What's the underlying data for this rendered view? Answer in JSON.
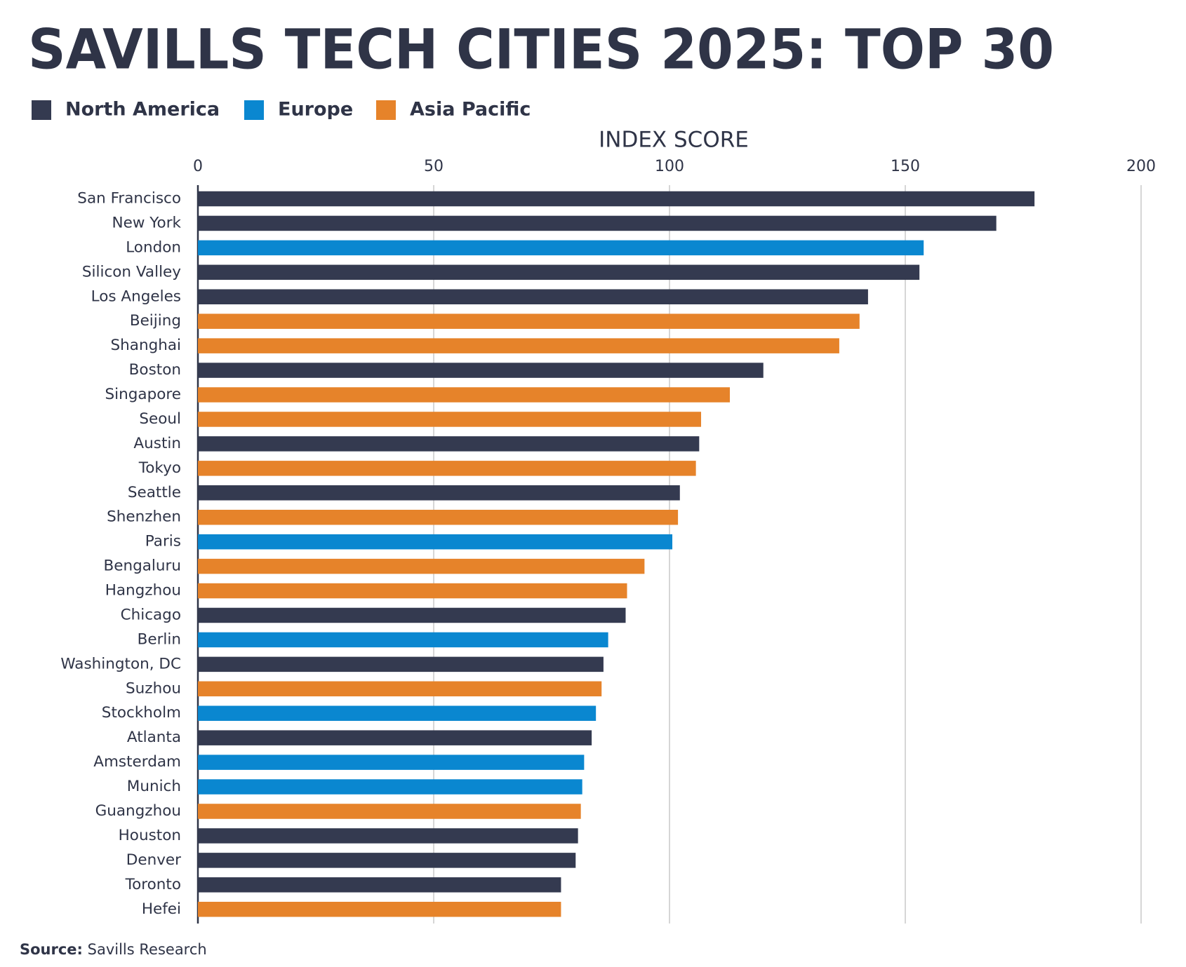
{
  "chart_data": {
    "type": "bar",
    "orientation": "horizontal",
    "title": "SAVILLS TECH CITIES 2025: TOP 30",
    "x_label": "INDEX SCORE",
    "categories": [
      "San Francisco",
      "New York",
      "London",
      "Silicon Valley",
      "Los Angeles",
      "Beijing",
      "Shanghai",
      "Boston",
      "Singapore",
      "Seoul",
      "Austin",
      "Tokyo",
      "Seattle",
      "Shenzhen",
      "Paris",
      "Bengaluru",
      "Hangzhou",
      "Chicago",
      "Berlin",
      "Washington, DC",
      "Suzhou",
      "Stockholm",
      "Atlanta",
      "Amsterdam",
      "Munich",
      "Guangzhou",
      "Houston",
      "Denver",
      "Toronto",
      "Hefei"
    ],
    "series": [
      {
        "name": "North America",
        "color": "#343a50",
        "values": [
          177.4,
          169.3,
          null,
          153.0,
          142.1,
          null,
          null,
          119.9,
          null,
          null,
          106.3,
          null,
          102.2,
          null,
          null,
          null,
          null,
          90.7,
          null,
          86.0,
          null,
          null,
          83.5,
          null,
          null,
          null,
          80.6,
          80.1,
          77.0,
          null
        ]
      },
      {
        "name": "Europe",
        "color": "#0a87d0",
        "values": [
          null,
          null,
          153.9,
          null,
          null,
          null,
          null,
          null,
          null,
          null,
          null,
          null,
          null,
          null,
          100.6,
          null,
          null,
          null,
          87.0,
          null,
          null,
          84.4,
          null,
          81.9,
          81.5,
          null,
          null,
          null,
          null,
          null
        ]
      },
      {
        "name": "Asia Pacific",
        "color": "#e6832a",
        "values": [
          null,
          null,
          null,
          null,
          null,
          140.3,
          136.0,
          null,
          112.8,
          106.7,
          null,
          105.6,
          null,
          101.8,
          null,
          94.7,
          91.0,
          null,
          null,
          null,
          85.6,
          null,
          null,
          null,
          null,
          81.2,
          null,
          null,
          null,
          77.0
        ]
      }
    ],
    "xlim": [
      0,
      200
    ],
    "xticks": [
      0,
      50,
      100,
      150,
      200
    ],
    "grid": true,
    "source_label": "Source:",
    "source": "Savills Research"
  }
}
